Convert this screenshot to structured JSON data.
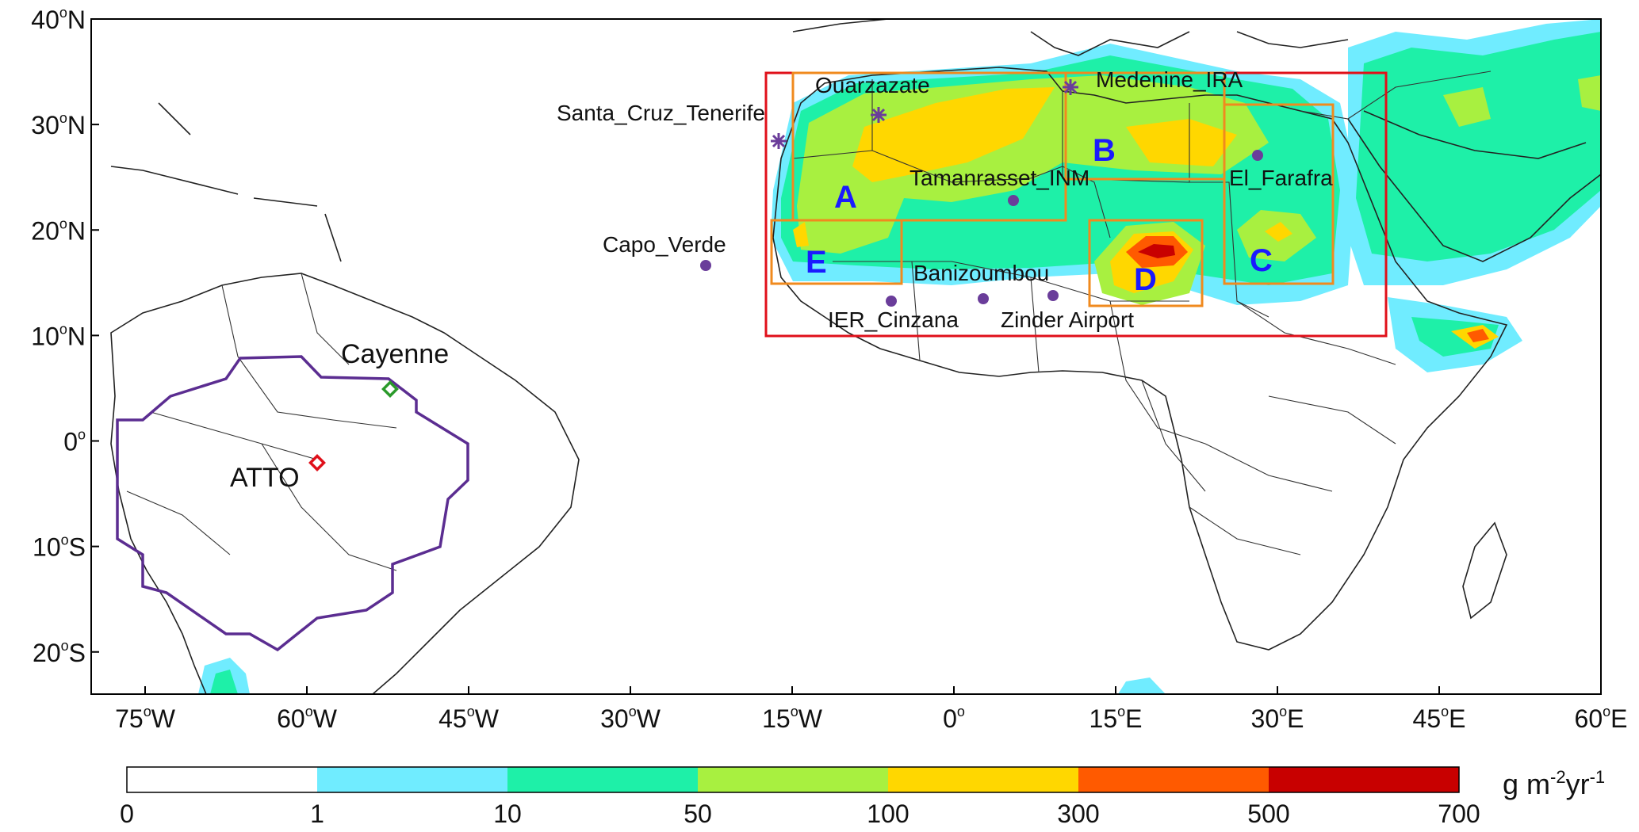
{
  "map": {
    "lat_ticks": [
      {
        "label": "40",
        "hemi": "N",
        "lat": 40
      },
      {
        "label": "30",
        "hemi": "N",
        "lat": 30
      },
      {
        "label": "20",
        "hemi": "N",
        "lat": 20
      },
      {
        "label": "10",
        "hemi": "N",
        "lat": 10
      },
      {
        "label": "0",
        "hemi": "",
        "lat": 0
      },
      {
        "label": "10",
        "hemi": "S",
        "lat": -10
      },
      {
        "label": "20",
        "hemi": "S",
        "lat": -20
      }
    ],
    "lon_ticks": [
      {
        "label": "75",
        "hemi": "W",
        "lon": -75
      },
      {
        "label": "60",
        "hemi": "W",
        "lon": -60
      },
      {
        "label": "45",
        "hemi": "W",
        "lon": -45
      },
      {
        "label": "30",
        "hemi": "W",
        "lon": -30
      },
      {
        "label": "15",
        "hemi": "W",
        "lon": -15
      },
      {
        "label": "0",
        "hemi": "",
        "lon": 0
      },
      {
        "label": "15",
        "hemi": "E",
        "lon": 15
      },
      {
        "label": "30",
        "hemi": "E",
        "lon": 30
      },
      {
        "label": "45",
        "hemi": "E",
        "lon": 45
      },
      {
        "label": "60",
        "hemi": "E",
        "lon": 60
      }
    ],
    "sites": [
      {
        "name": "Santa_Cruz_Tenerife",
        "marker": "asterisk"
      },
      {
        "name": "Ouarzazate",
        "marker": "asterisk"
      },
      {
        "name": "Medenine_IRA",
        "marker": "asterisk"
      },
      {
        "name": "Tamanrasset_INM",
        "marker": "dot"
      },
      {
        "name": "El_Farafra",
        "marker": "dot"
      },
      {
        "name": "Capo_Verde",
        "marker": "dot"
      },
      {
        "name": "Banizoumbou",
        "marker": "dot"
      },
      {
        "name": "IER_Cinzana",
        "marker": "dot"
      },
      {
        "name": "Zinder Airport",
        "marker": "dot"
      },
      {
        "name": "Cayenne",
        "marker": "diamond-green"
      },
      {
        "name": "ATTO",
        "marker": "diamond-red"
      }
    ],
    "regions": [
      "A",
      "B",
      "C",
      "D",
      "E"
    ],
    "colors": {
      "site_marker": "#6a3d9a",
      "amazon_outline": "#5b2d91",
      "outer_box": "#e0101a",
      "region_boxes": "#f08a1e",
      "region_letters": "#1a1aff"
    }
  },
  "colorbar": {
    "labels": [
      "0",
      "1",
      "10",
      "50",
      "100",
      "300",
      "500",
      "700"
    ],
    "colors": [
      "#ffffff",
      "#70ecff",
      "#1ef0a8",
      "#a8f040",
      "#ffd700",
      "#ff5a00",
      "#c80000"
    ],
    "unit": {
      "base": "g m",
      "exp1": "-2",
      "mid": "yr",
      "exp2": "-1"
    }
  }
}
